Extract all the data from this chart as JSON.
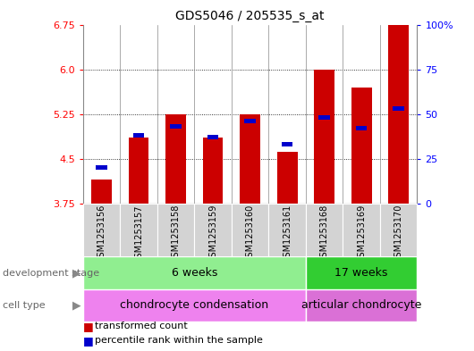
{
  "title": "GDS5046 / 205535_s_at",
  "samples": [
    "GSM1253156",
    "GSM1253157",
    "GSM1253158",
    "GSM1253159",
    "GSM1253160",
    "GSM1253161",
    "GSM1253168",
    "GSM1253169",
    "GSM1253170"
  ],
  "red_values": [
    4.15,
    4.85,
    5.25,
    4.85,
    5.25,
    4.62,
    6.0,
    5.7,
    6.75
  ],
  "blue_values_pct": [
    20,
    38,
    43,
    37,
    46,
    33,
    48,
    42,
    53
  ],
  "ylim_left": [
    3.75,
    6.75
  ],
  "ylim_right": [
    0,
    100
  ],
  "yticks_left": [
    3.75,
    4.5,
    5.25,
    6.0,
    6.75
  ],
  "yticks_right": [
    0,
    25,
    50,
    75,
    100
  ],
  "bar_width": 0.55,
  "bar_color_red": "#cc0000",
  "bar_color_blue": "#0000cc",
  "base_value": 3.75,
  "dev_stage_6weeks_color": "#90ee90",
  "dev_stage_17weeks_color": "#32cd32",
  "cell_type_chondro_color": "#ee82ee",
  "cell_type_articular_color": "#da70d6",
  "dev_stage_label": "development stage",
  "cell_type_label": "cell type",
  "dev_stage_6weeks_text": "6 weeks",
  "dev_stage_17weeks_text": "17 weeks",
  "cell_type_chondro_text": "chondrocyte condensation",
  "cell_type_articular_text": "articular chondrocyte",
  "legend_red_text": "transformed count",
  "legend_blue_text": "percentile rank within the sample",
  "n_6weeks": 6,
  "n_17weeks": 3,
  "xlabels_bg": "#d3d3d3",
  "spine_color": "#888888"
}
